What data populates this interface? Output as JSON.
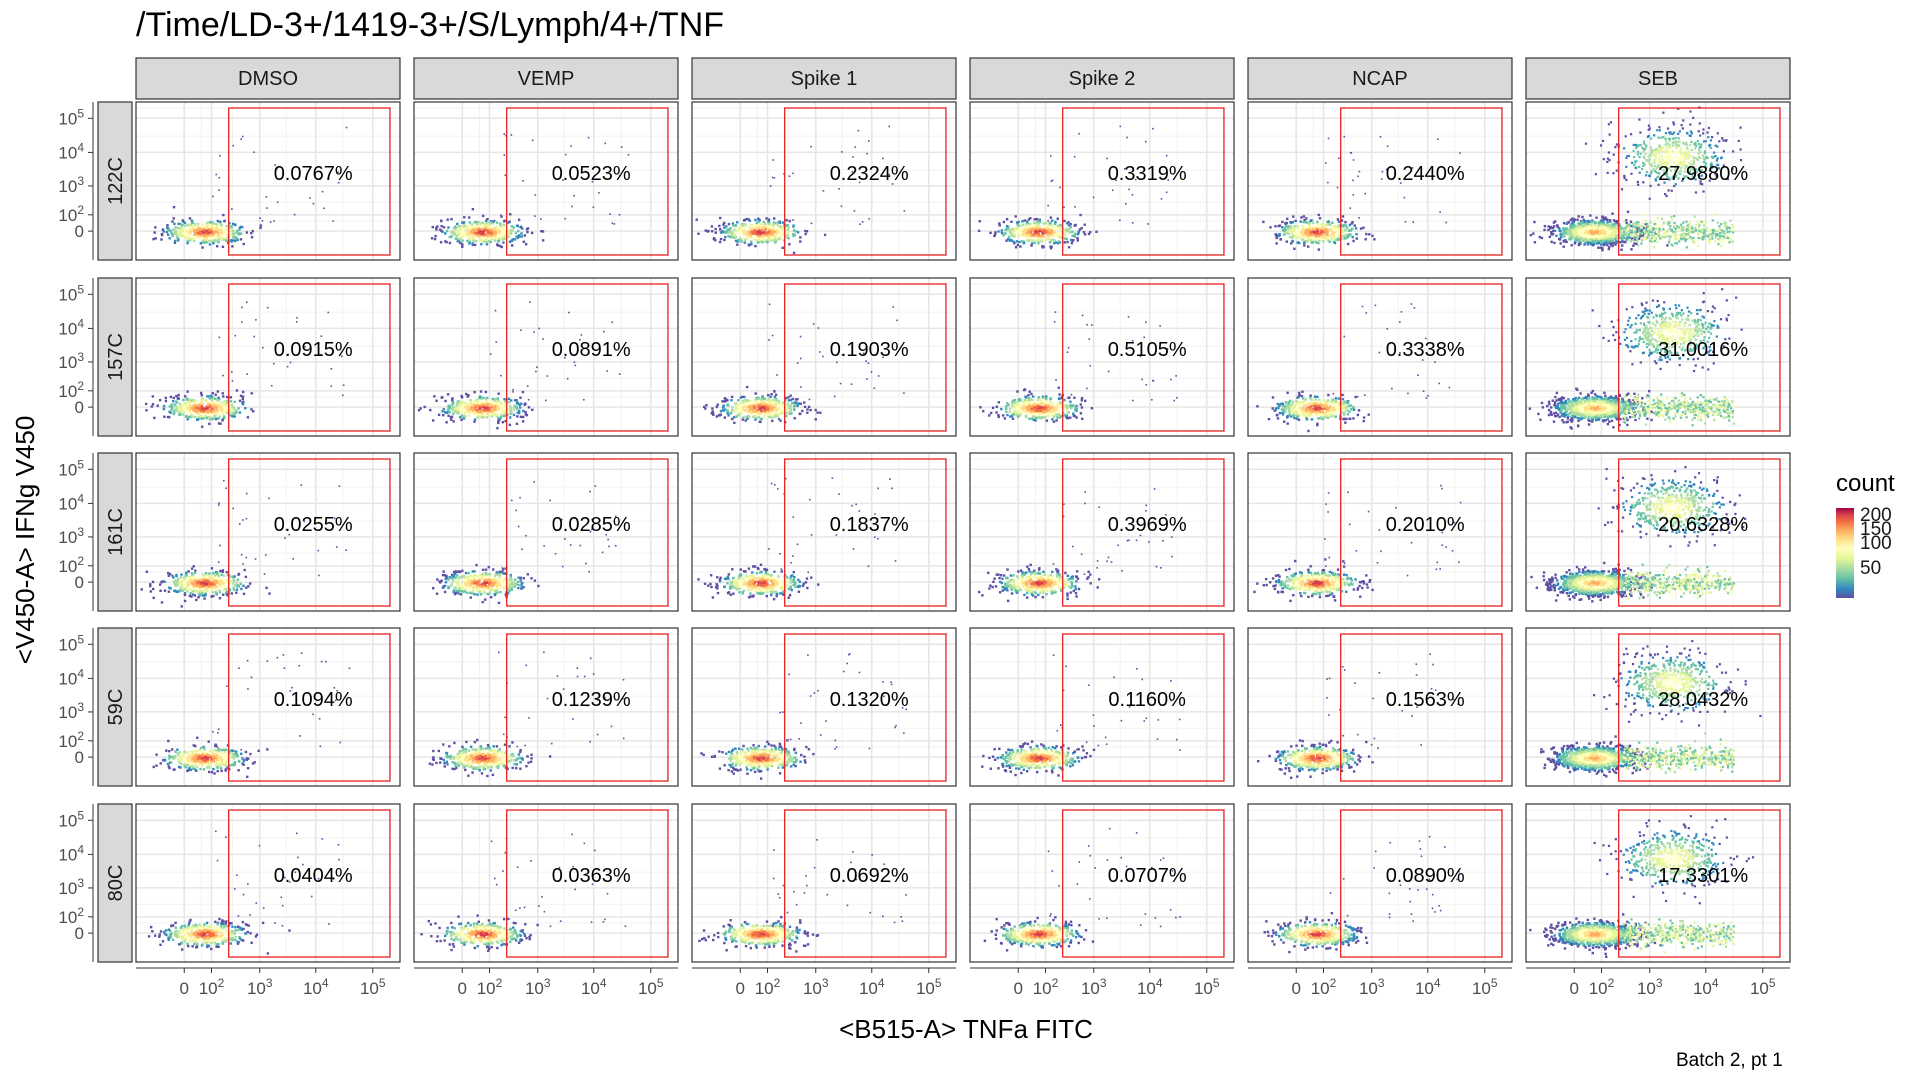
{
  "title": "/Time/LD-3+/1419-3+/S/Lymph/4+/TNF",
  "caption": "Batch 2, pt 1",
  "chart_data": {
    "type": "heatmap",
    "subtype": "faceted 2D density scatter (flow cytometry gating)",
    "xlabel": "<B515-A> TNFa FITC",
    "ylabel": "<V450-A> IFNg V450",
    "x_scale": "biexponential",
    "y_scale": "biexponential",
    "x_ticks": [
      "0",
      "10^2",
      "10^3",
      "10^4",
      "10^5"
    ],
    "y_ticks": [
      "0",
      "10^2",
      "10^3",
      "10^4",
      "10^5"
    ],
    "columns": [
      "DMSO",
      "VEMP",
      "Spike 1",
      "Spike 2",
      "NCAP",
      "SEB"
    ],
    "rows": [
      "122C",
      "157C",
      "161C",
      "59C",
      "80C"
    ],
    "gate_color": "#e8211f",
    "gate": {
      "x_min": 250,
      "x_max": 200000,
      "y_min": -200,
      "y_max": 200000
    },
    "percentages": [
      [
        "0.0767%",
        "0.0523%",
        "0.2324%",
        "0.3319%",
        "0.2440%",
        "27.9880%"
      ],
      [
        "0.0915%",
        "0.0891%",
        "0.1903%",
        "0.5105%",
        "0.3338%",
        "31.0016%"
      ],
      [
        "0.0255%",
        "0.0285%",
        "0.1837%",
        "0.3969%",
        "0.2010%",
        "20.6328%"
      ],
      [
        "0.1094%",
        "0.1239%",
        "0.1320%",
        "0.1160%",
        "0.1563%",
        "28.0432%"
      ],
      [
        "0.0404%",
        "0.0363%",
        "0.0692%",
        "0.0707%",
        "0.0890%",
        "17.3301%"
      ]
    ],
    "legend": {
      "title": "count",
      "labels": [
        "200",
        "150",
        "100",
        "50"
      ],
      "palette": [
        "#5e4fa2",
        "#3288bd",
        "#66c2a5",
        "#abdda4",
        "#e6f598",
        "#ffffbf",
        "#fee08b",
        "#fdae61",
        "#f46d43",
        "#d53e4f",
        "#9e0142"
      ]
    },
    "grid": true
  }
}
